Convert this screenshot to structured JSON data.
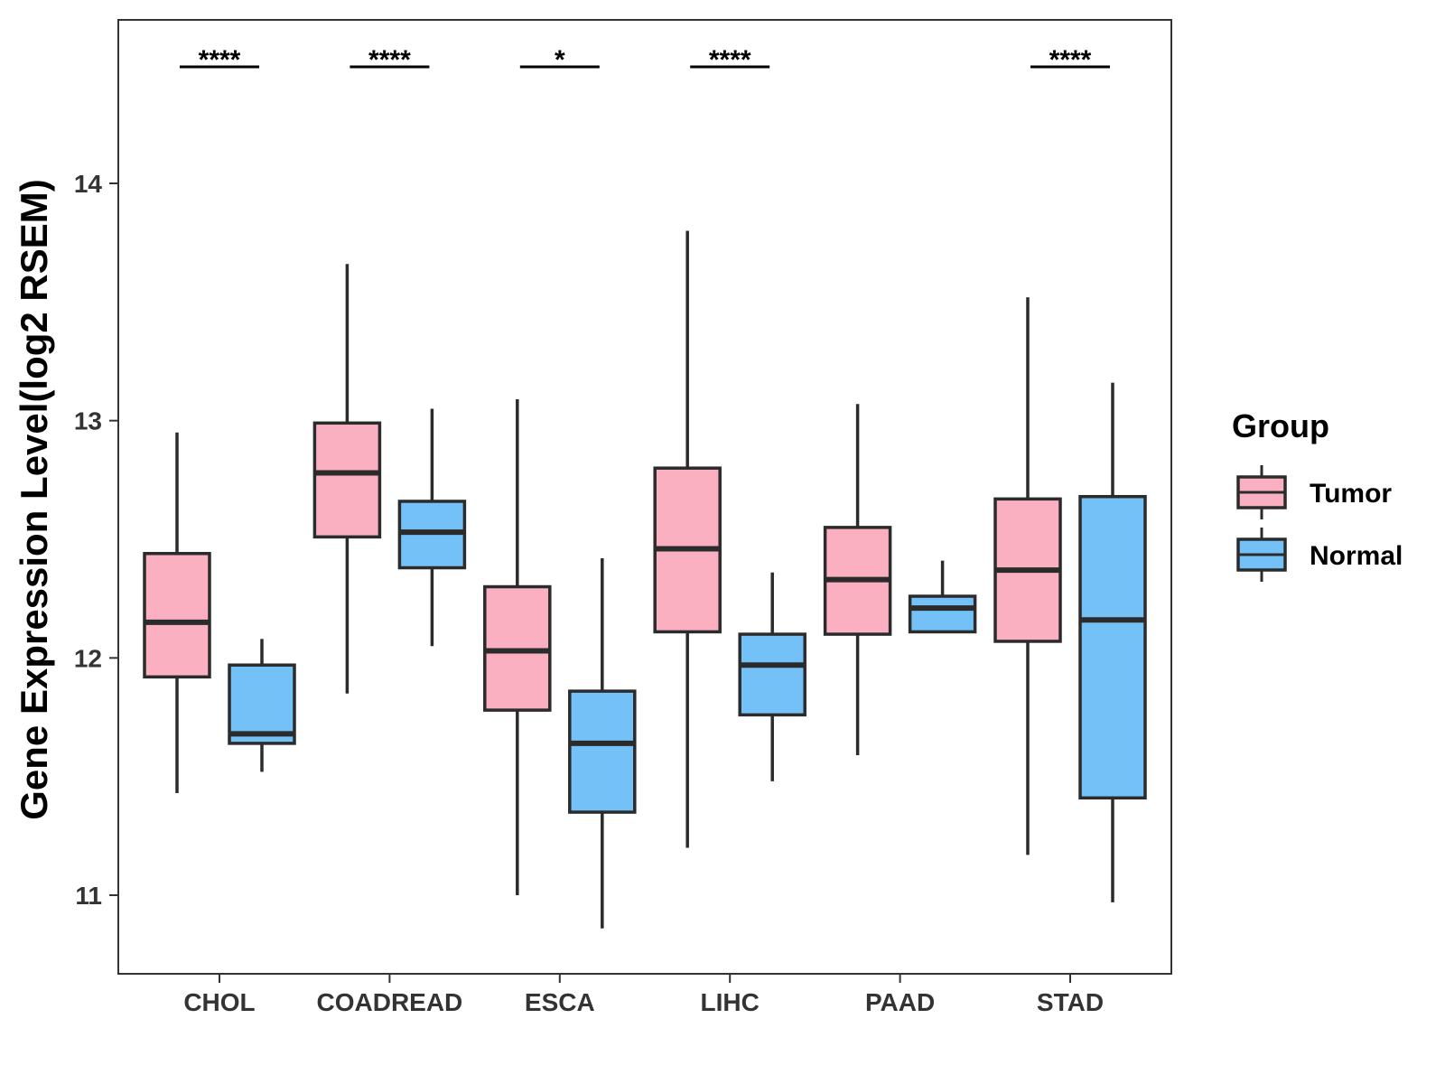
{
  "chart_data": {
    "type": "boxplot",
    "title": "",
    "xlabel": "",
    "ylabel": "Gene Expression Level(log2 RSEM)",
    "ylim": [
      10.68,
      14.7
    ],
    "yticks": [
      "11",
      "12",
      "13",
      "14"
    ],
    "grid": false,
    "categories": [
      "CHOL",
      "COADREAD",
      "ESCA",
      "LIHC",
      "PAAD",
      "STAD"
    ],
    "legend": {
      "title": "Group",
      "position": "right",
      "entries": [
        {
          "name": "Tumor",
          "color": "#FBB0C2"
        },
        {
          "name": "Normal",
          "color": "#74C1F7"
        }
      ]
    },
    "series": [
      {
        "name": "Tumor",
        "color": "#FBB0C2",
        "boxes": [
          {
            "min": 11.43,
            "q1": 11.92,
            "median": 12.15,
            "q3": 12.44,
            "max": 12.95
          },
          {
            "min": 11.85,
            "q1": 12.51,
            "median": 12.78,
            "q3": 12.99,
            "max": 13.66
          },
          {
            "min": 11.0,
            "q1": 11.78,
            "median": 12.03,
            "q3": 12.3,
            "max": 13.09
          },
          {
            "min": 11.2,
            "q1": 12.11,
            "median": 12.46,
            "q3": 12.8,
            "max": 13.8
          },
          {
            "min": 11.59,
            "q1": 12.1,
            "median": 12.33,
            "q3": 12.55,
            "max": 13.07
          },
          {
            "min": 11.17,
            "q1": 12.07,
            "median": 12.37,
            "q3": 12.67,
            "max": 13.52
          }
        ]
      },
      {
        "name": "Normal",
        "color": "#74C1F7",
        "boxes": [
          {
            "min": 11.52,
            "q1": 11.64,
            "median": 11.68,
            "q3": 11.97,
            "max": 12.08
          },
          {
            "min": 12.05,
            "q1": 12.38,
            "median": 12.53,
            "q3": 12.66,
            "max": 13.05
          },
          {
            "min": 10.86,
            "q1": 11.35,
            "median": 11.64,
            "q3": 11.86,
            "max": 12.42
          },
          {
            "min": 11.48,
            "q1": 11.76,
            "median": 11.97,
            "q3": 12.1,
            "max": 12.36
          },
          {
            "min": 12.11,
            "q1": 12.11,
            "median": 12.21,
            "q3": 12.26,
            "max": 12.41
          },
          {
            "min": 10.97,
            "q1": 11.41,
            "median": 12.16,
            "q3": 12.68,
            "max": 13.16
          }
        ]
      }
    ],
    "significance": [
      "****",
      "****",
      "*",
      "****",
      "",
      "****"
    ],
    "colors": {
      "box_outline": "#2b2b2b",
      "panel_border": "#333333",
      "background": "#ffffff"
    }
  }
}
